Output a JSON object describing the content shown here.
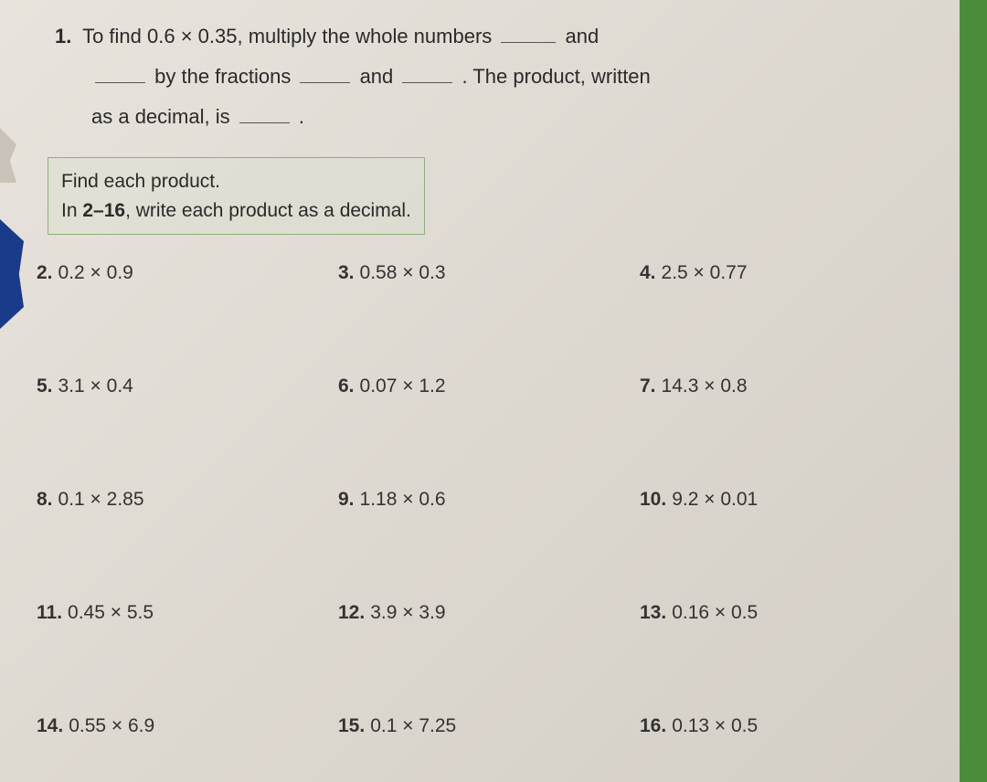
{
  "q1": {
    "number": "1.",
    "line1_a": "To find 0.6 × 0.35, multiply the whole numbers",
    "line1_b": "and",
    "line2_a": "by the fractions",
    "line2_b": "and",
    "line2_c": ". The product, written",
    "line3_a": "as a decimal, is",
    "line3_b": "."
  },
  "instructions": {
    "line1": "Find each product.",
    "line2_a": "In ",
    "line2_bold": "2–16",
    "line2_b": ", write each product as a decimal."
  },
  "problems": [
    {
      "n": "2.",
      "expr": "0.2 × 0.9"
    },
    {
      "n": "3.",
      "expr": "0.58 × 0.3"
    },
    {
      "n": "4.",
      "expr": "2.5 × 0.77"
    },
    {
      "n": "5.",
      "expr": "3.1 × 0.4"
    },
    {
      "n": "6.",
      "expr": "0.07 × 1.2"
    },
    {
      "n": "7.",
      "expr": "14.3 × 0.8"
    },
    {
      "n": "8.",
      "expr": "0.1 × 2.85"
    },
    {
      "n": "9.",
      "expr": "1.18 × 0.6"
    },
    {
      "n": "10.",
      "expr": "9.2 × 0.01"
    },
    {
      "n": "11.",
      "expr": "0.45 × 5.5"
    },
    {
      "n": "12.",
      "expr": "3.9 × 3.9"
    },
    {
      "n": "13.",
      "expr": "0.16 × 0.5"
    },
    {
      "n": "14.",
      "expr": "0.55 × 6.9"
    },
    {
      "n": "15.",
      "expr": "0.1 × 7.25"
    },
    {
      "n": "16.",
      "expr": "0.13 × 0.5"
    }
  ]
}
